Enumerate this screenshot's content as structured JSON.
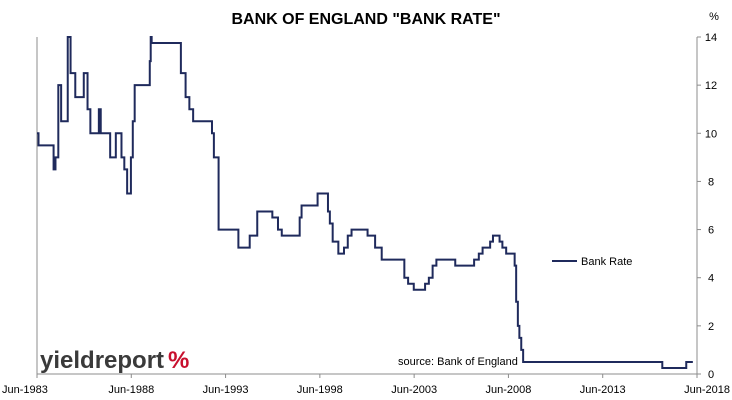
{
  "chart_data": {
    "type": "line",
    "title": "BANK OF ENGLAND \"BANK RATE\"",
    "y_unit": "%",
    "xlabel": "",
    "ylabel": "",
    "ylim": [
      0,
      14
    ],
    "y_ticks": [
      0,
      2,
      4,
      6,
      8,
      10,
      12,
      14
    ],
    "xlim": [
      1983.42,
      2018.42
    ],
    "x_ticks": [
      {
        "value": 1983.42,
        "label": "Jun-1983"
      },
      {
        "value": 1988.42,
        "label": "Jun-1988"
      },
      {
        "value": 1993.42,
        "label": "Jun-1993"
      },
      {
        "value": 1998.42,
        "label": "Jun-1998"
      },
      {
        "value": 2003.42,
        "label": "Jun-2003"
      },
      {
        "value": 2008.42,
        "label": "Jun-2008"
      },
      {
        "value": 2013.42,
        "label": "Jun-2013"
      },
      {
        "value": 2018.42,
        "label": "Jun-2018"
      }
    ],
    "grid": false,
    "legend_position": "right",
    "source_note": "source: Bank of England",
    "series": [
      {
        "name": "Bank Rate",
        "color": "#1f2a5c",
        "step": true,
        "points": [
          [
            1983.42,
            10.0
          ],
          [
            1983.5,
            9.5
          ],
          [
            1984.2,
            9.5
          ],
          [
            1984.3,
            8.5
          ],
          [
            1984.4,
            9.0
          ],
          [
            1984.55,
            12.0
          ],
          [
            1984.7,
            10.5
          ],
          [
            1985.05,
            14.0
          ],
          [
            1985.2,
            12.5
          ],
          [
            1985.45,
            11.5
          ],
          [
            1985.8,
            11.5
          ],
          [
            1985.9,
            12.5
          ],
          [
            1986.1,
            11.0
          ],
          [
            1986.25,
            10.0
          ],
          [
            1986.5,
            10.0
          ],
          [
            1986.7,
            11.0
          ],
          [
            1986.8,
            10.0
          ],
          [
            1987.3,
            9.0
          ],
          [
            1987.5,
            9.0
          ],
          [
            1987.6,
            10.0
          ],
          [
            1987.9,
            9.0
          ],
          [
            1988.05,
            8.5
          ],
          [
            1988.2,
            7.5
          ],
          [
            1988.4,
            9.0
          ],
          [
            1988.5,
            10.5
          ],
          [
            1988.6,
            12.0
          ],
          [
            1988.95,
            12.0
          ],
          [
            1989.4,
            13.0
          ],
          [
            1989.45,
            14.0
          ],
          [
            1989.5,
            13.75
          ],
          [
            1990.8,
            13.75
          ],
          [
            1991.05,
            12.5
          ],
          [
            1991.3,
            11.5
          ],
          [
            1991.5,
            11.0
          ],
          [
            1991.7,
            10.5
          ],
          [
            1992.1,
            10.5
          ],
          [
            1992.7,
            10.0
          ],
          [
            1992.8,
            9.0
          ],
          [
            1992.9,
            9.0
          ],
          [
            1993.05,
            6.0
          ],
          [
            1993.2,
            6.0
          ],
          [
            1994.1,
            5.25
          ],
          [
            1994.7,
            5.75
          ],
          [
            1995.1,
            6.75
          ],
          [
            1995.9,
            6.5
          ],
          [
            1996.2,
            6.0
          ],
          [
            1996.4,
            5.75
          ],
          [
            1996.8,
            5.75
          ],
          [
            1997.35,
            6.5
          ],
          [
            1997.45,
            7.0
          ],
          [
            1998.3,
            7.5
          ],
          [
            1998.85,
            6.75
          ],
          [
            1998.95,
            6.25
          ],
          [
            1999.1,
            5.5
          ],
          [
            1999.4,
            5.0
          ],
          [
            1999.7,
            5.25
          ],
          [
            1999.9,
            5.75
          ],
          [
            2000.1,
            6.0
          ],
          [
            2000.95,
            5.75
          ],
          [
            2001.35,
            5.25
          ],
          [
            2001.7,
            4.75
          ],
          [
            2002.9,
            4.0
          ],
          [
            2003.1,
            3.75
          ],
          [
            2003.4,
            3.5
          ],
          [
            2004.0,
            3.75
          ],
          [
            2004.2,
            4.0
          ],
          [
            2004.4,
            4.5
          ],
          [
            2004.6,
            4.75
          ],
          [
            2005.6,
            4.5
          ],
          [
            2006.6,
            4.75
          ],
          [
            2006.85,
            5.0
          ],
          [
            2007.05,
            5.25
          ],
          [
            2007.45,
            5.5
          ],
          [
            2007.6,
            5.75
          ],
          [
            2007.95,
            5.5
          ],
          [
            2008.1,
            5.25
          ],
          [
            2008.3,
            5.0
          ],
          [
            2008.75,
            4.5
          ],
          [
            2008.83,
            3.0
          ],
          [
            2008.92,
            2.0
          ],
          [
            2009.0,
            1.5
          ],
          [
            2009.1,
            1.0
          ],
          [
            2009.2,
            0.5
          ],
          [
            2016.58,
            0.25
          ],
          [
            2017.85,
            0.5
          ],
          [
            2018.2,
            0.5
          ]
        ]
      }
    ]
  },
  "branding": {
    "logo_text": "yieldreport",
    "logo_symbol": "%",
    "logo_text_color": "#3a3a3a",
    "logo_symbol_color": "#c8102e"
  }
}
